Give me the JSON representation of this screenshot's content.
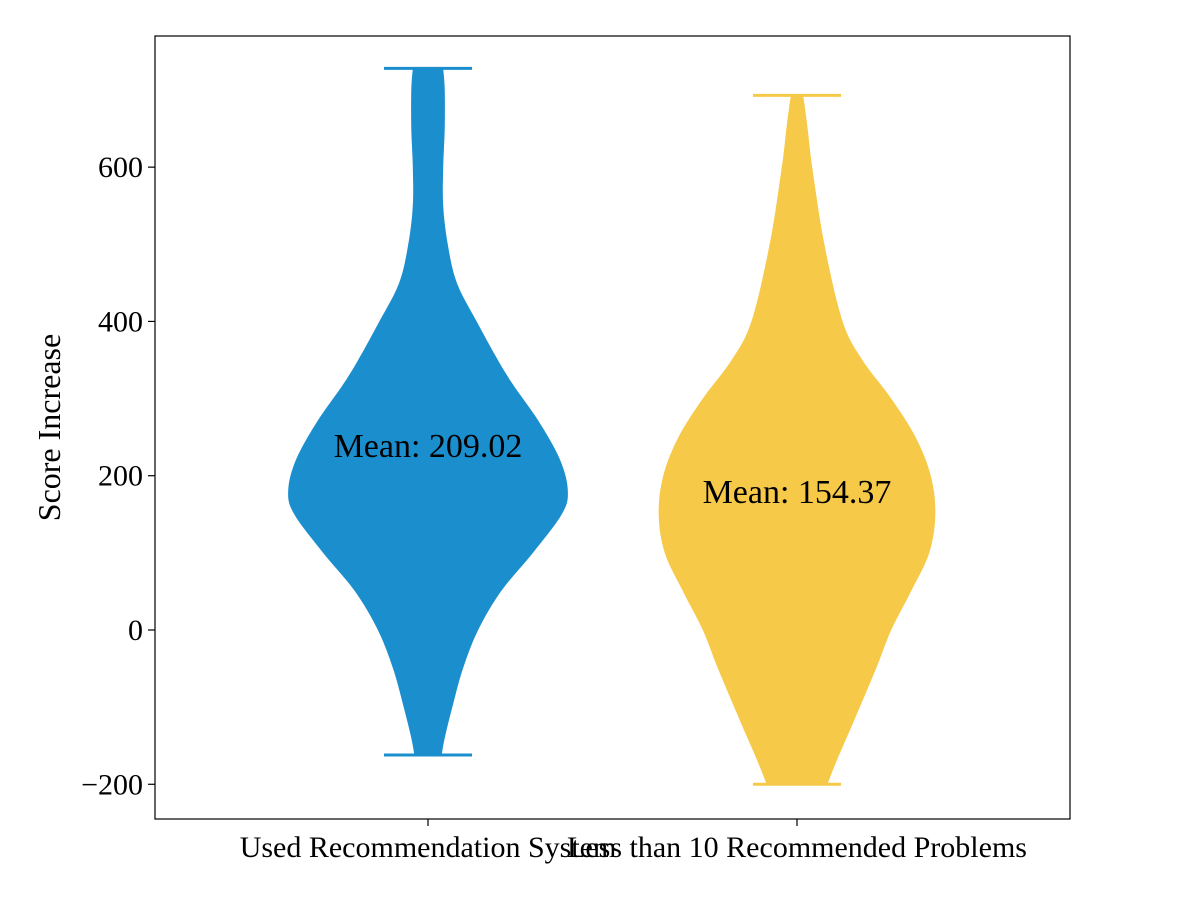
{
  "chart_data": {
    "type": "violin",
    "ylabel": "Score Increase",
    "ylim": [
      -245,
      770
    ],
    "yticks": [
      -200,
      0,
      200,
      400,
      600
    ],
    "ytick_labels": [
      "−200",
      "0",
      "200",
      "400",
      "600"
    ],
    "grid": false,
    "categories": [
      "Used Recommendation System",
      "Less than 10 Recommended Problems"
    ],
    "series": [
      {
        "color": "#1b8fce",
        "min": -162,
        "max": 728,
        "mean_value": 209.02,
        "mean_label": "Mean: 209.02",
        "mean_label_y": 240,
        "density": [
          [
            -162,
            0.09
          ],
          [
            -140,
            0.11
          ],
          [
            -100,
            0.16
          ],
          [
            -50,
            0.23
          ],
          [
            0,
            0.33
          ],
          [
            50,
            0.48
          ],
          [
            100,
            0.69
          ],
          [
            150,
            0.88
          ],
          [
            180,
            0.92
          ],
          [
            220,
            0.87
          ],
          [
            270,
            0.73
          ],
          [
            330,
            0.52
          ],
          [
            400,
            0.32
          ],
          [
            450,
            0.19
          ],
          [
            500,
            0.13
          ],
          [
            550,
            0.1
          ],
          [
            600,
            0.1
          ],
          [
            650,
            0.11
          ],
          [
            700,
            0.11
          ],
          [
            728,
            0.1
          ]
        ]
      },
      {
        "color": "#f7c948",
        "min": -200,
        "max": 693,
        "mean_value": 154.37,
        "mean_label": "Mean: 154.37",
        "mean_label_y": 180,
        "density": [
          [
            -200,
            0.2
          ],
          [
            -170,
            0.26
          ],
          [
            -120,
            0.37
          ],
          [
            -50,
            0.52
          ],
          [
            0,
            0.62
          ],
          [
            50,
            0.75
          ],
          [
            100,
            0.87
          ],
          [
            150,
            0.91
          ],
          [
            200,
            0.88
          ],
          [
            250,
            0.78
          ],
          [
            300,
            0.62
          ],
          [
            350,
            0.43
          ],
          [
            400,
            0.3
          ],
          [
            500,
            0.18
          ],
          [
            600,
            0.1
          ],
          [
            650,
            0.07
          ],
          [
            680,
            0.05
          ],
          [
            693,
            0.04
          ]
        ]
      }
    ]
  }
}
